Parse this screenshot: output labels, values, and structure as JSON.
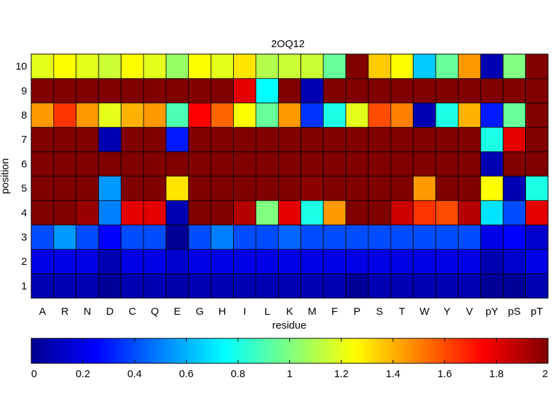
{
  "chart_data": {
    "type": "heatmap",
    "title": "2OQ12",
    "xlabel": "residue",
    "ylabel": "position",
    "x_categories": [
      "A",
      "R",
      "N",
      "D",
      "C",
      "Q",
      "E",
      "G",
      "H",
      "I",
      "L",
      "K",
      "M",
      "F",
      "P",
      "S",
      "T",
      "W",
      "Y",
      "V",
      "pY",
      "pS",
      "pT"
    ],
    "y_categories": [
      "1",
      "2",
      "3",
      "4",
      "5",
      "6",
      "7",
      "8",
      "9",
      "10"
    ],
    "values": [
      [
        0.1,
        0.1,
        0.1,
        0.05,
        0.1,
        0.1,
        0.08,
        0.1,
        0.1,
        0.1,
        0.1,
        0.1,
        0.1,
        0.1,
        0.05,
        0.1,
        0.1,
        0.1,
        0.1,
        0.1,
        0.05,
        0.05,
        0.1
      ],
      [
        0.2,
        0.2,
        0.2,
        0.1,
        0.2,
        0.2,
        0.15,
        0.2,
        0.2,
        0.2,
        0.2,
        0.2,
        0.2,
        0.2,
        0.2,
        0.2,
        0.2,
        0.2,
        0.2,
        0.2,
        0.1,
        0.15,
        0.2
      ],
      [
        0.4,
        0.55,
        0.4,
        0.25,
        0.4,
        0.4,
        0.05,
        0.4,
        0.5,
        0.4,
        0.4,
        0.45,
        0.4,
        0.4,
        0.4,
        0.4,
        0.4,
        0.4,
        0.4,
        0.4,
        0.2,
        0.25,
        0.15
      ],
      [
        2.0,
        2.0,
        1.95,
        0.5,
        1.8,
        1.8,
        0.1,
        2.0,
        2.0,
        1.9,
        1.0,
        1.8,
        0.8,
        1.45,
        2.0,
        2.0,
        1.85,
        1.65,
        1.6,
        1.9,
        0.7,
        0.4,
        1.8
      ],
      [
        2.0,
        2.0,
        2.0,
        0.55,
        2.0,
        2.0,
        1.3,
        2.0,
        2.0,
        2.0,
        2.0,
        2.0,
        1.98,
        2.0,
        2.0,
        2.0,
        2.0,
        1.45,
        2.0,
        2.0,
        1.25,
        0.1,
        0.8
      ],
      [
        2.0,
        2.0,
        2.0,
        2.0,
        2.0,
        2.0,
        2.0,
        2.0,
        2.0,
        2.0,
        2.0,
        2.0,
        2.0,
        2.0,
        2.0,
        2.0,
        2.0,
        2.0,
        2.0,
        2.0,
        0.1,
        2.0,
        2.0
      ],
      [
        2.0,
        2.0,
        2.0,
        0.1,
        2.0,
        2.0,
        0.3,
        2.0,
        2.0,
        2.0,
        2.0,
        2.0,
        2.0,
        2.0,
        2.0,
        2.0,
        2.0,
        2.0,
        2.0,
        2.0,
        0.8,
        1.8,
        2.0
      ],
      [
        1.45,
        1.65,
        1.45,
        1.2,
        1.4,
        1.45,
        0.9,
        1.75,
        1.55,
        1.25,
        0.95,
        1.45,
        0.35,
        0.8,
        1.2,
        1.6,
        1.5,
        0.1,
        0.8,
        1.4,
        0.3,
        0.95,
        2.0
      ],
      [
        2.0,
        2.0,
        2.0,
        2.0,
        2.0,
        2.0,
        2.0,
        2.0,
        2.0,
        1.8,
        0.75,
        2.0,
        0.1,
        2.0,
        2.0,
        2.0,
        2.0,
        2.0,
        2.0,
        2.0,
        2.0,
        2.0,
        2.0
      ],
      [
        1.2,
        1.25,
        1.2,
        1.15,
        1.25,
        1.2,
        1.05,
        1.25,
        1.2,
        1.3,
        1.1,
        1.15,
        1.15,
        0.95,
        2.0,
        1.35,
        1.25,
        0.65,
        0.95,
        1.45,
        0.1,
        1.0,
        2.0
      ]
    ],
    "colormap": "jet",
    "colorbar": {
      "orientation": "horizontal",
      "location": "bottom",
      "range": [
        0,
        2
      ],
      "ticks": [
        0,
        0.2,
        0.4,
        0.6,
        0.8,
        1,
        1.2,
        1.4,
        1.6,
        1.8,
        2
      ],
      "tick_labels": [
        "0",
        "0.2",
        "0.4",
        "0.6",
        "0.8",
        "1",
        "1.2",
        "1.4",
        "1.6",
        "1.8",
        "2"
      ]
    },
    "grid": true
  }
}
